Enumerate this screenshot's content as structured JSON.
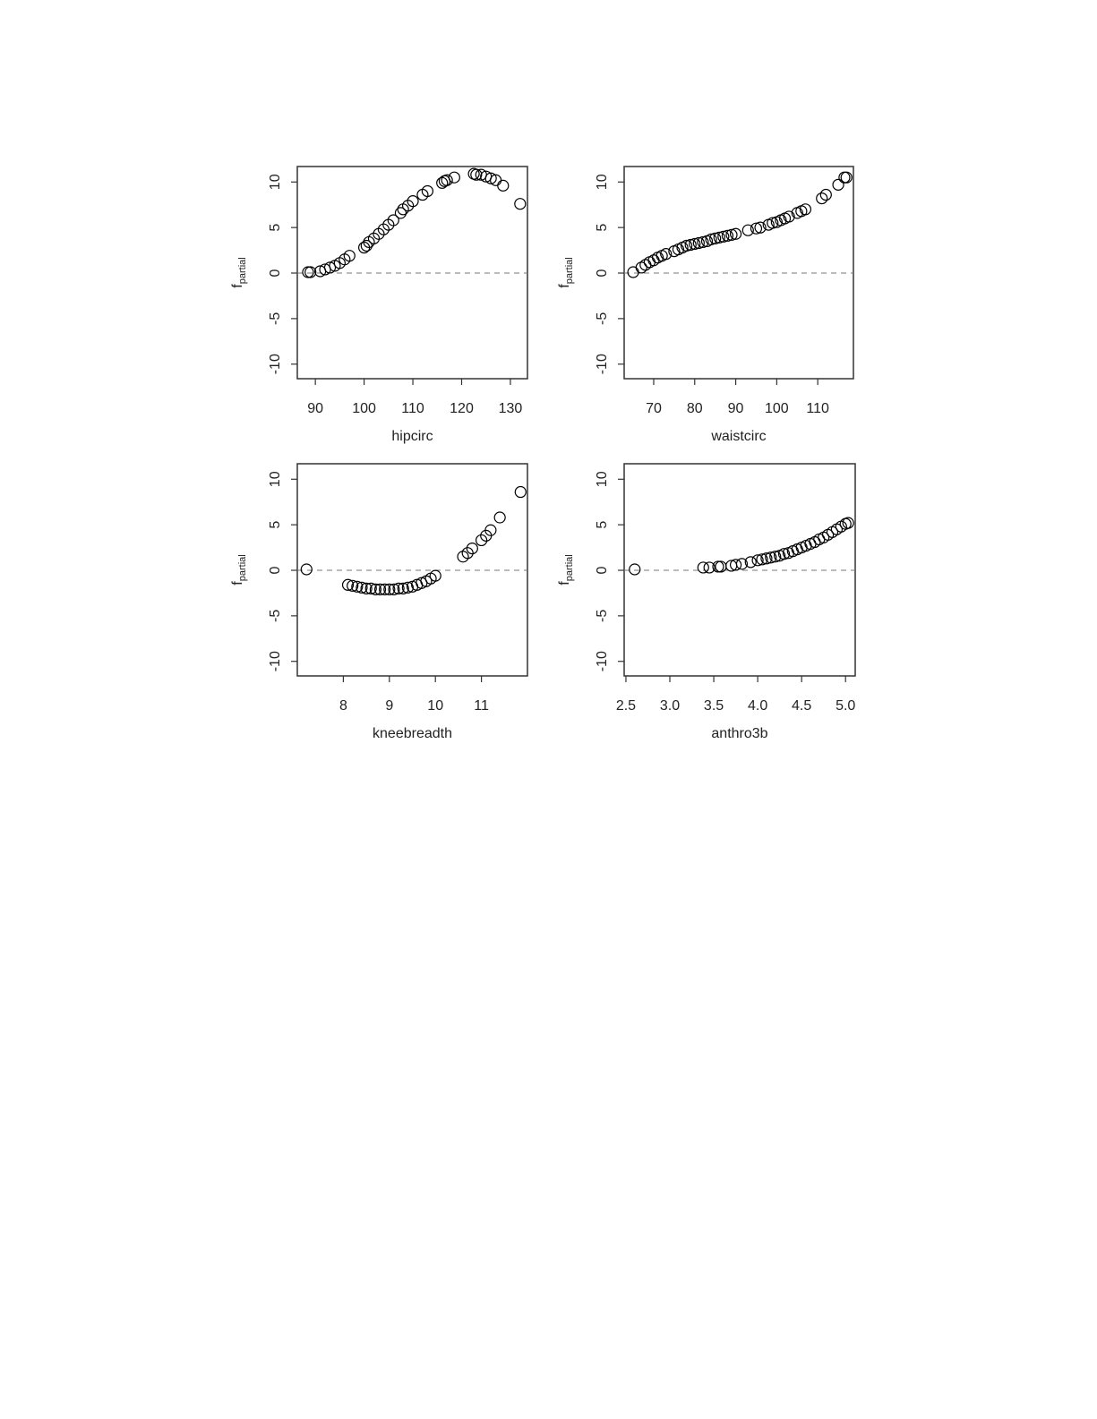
{
  "chart_data": [
    {
      "type": "scatter",
      "xlabel": "hipcirc",
      "ylabel": "f",
      "ylabel_sub": "partial",
      "color": "#000000",
      "refline": 0,
      "xlim": [
        86.3,
        133.5
      ],
      "ylim": [
        -11.6,
        11.7
      ],
      "xticks": [
        90,
        100,
        110,
        120,
        130
      ],
      "yticks": [
        -10,
        -5,
        0,
        5,
        10
      ],
      "x": [
        88.5,
        89,
        91,
        92,
        93,
        94,
        95,
        96,
        97,
        100,
        100.5,
        101,
        102,
        103,
        104,
        105,
        106,
        107.5,
        108,
        109,
        110,
        112,
        113,
        116,
        116.5,
        117,
        118.5,
        122.5,
        123,
        124,
        125,
        126,
        127,
        128.5,
        132
      ],
      "values": [
        0.1,
        0.1,
        0.2,
        0.4,
        0.6,
        0.8,
        1.1,
        1.5,
        1.9,
        2.8,
        3.0,
        3.4,
        3.8,
        4.3,
        4.8,
        5.3,
        5.8,
        6.6,
        7.0,
        7.4,
        7.9,
        8.6,
        9.0,
        9.9,
        10.1,
        10.2,
        10.5,
        10.9,
        10.8,
        10.8,
        10.6,
        10.4,
        10.2,
        9.6,
        7.6
      ]
    },
    {
      "type": "scatter",
      "xlabel": "waistcirc",
      "ylabel": "f",
      "ylabel_sub": "partial",
      "color": "#000000",
      "refline": 0,
      "xlim": [
        62.8,
        118.7
      ],
      "ylim": [
        -11.6,
        11.7
      ],
      "xticks": [
        70,
        80,
        90,
        100,
        110
      ],
      "yticks": [
        -10,
        -5,
        0,
        5,
        10
      ],
      "x": [
        65,
        67,
        68,
        69,
        70,
        71,
        72,
        73,
        75,
        76,
        77,
        78,
        79,
        80,
        81,
        82,
        83,
        84,
        85,
        86,
        87,
        88,
        89,
        90,
        93,
        95,
        96,
        98,
        99,
        100,
        101,
        102,
        103,
        105,
        106,
        107,
        111,
        112,
        115,
        116.5,
        117
      ],
      "values": [
        0.1,
        0.6,
        0.9,
        1.2,
        1.4,
        1.7,
        1.9,
        2.1,
        2.4,
        2.6,
        2.8,
        3.0,
        3.1,
        3.2,
        3.3,
        3.4,
        3.5,
        3.7,
        3.8,
        3.9,
        4.0,
        4.1,
        4.2,
        4.3,
        4.7,
        4.9,
        5.0,
        5.3,
        5.5,
        5.6,
        5.8,
        6.0,
        6.2,
        6.6,
        6.8,
        7.0,
        8.2,
        8.6,
        9.7,
        10.5,
        10.5
      ]
    },
    {
      "type": "scatter",
      "xlabel": "kneebreadth",
      "ylabel": "f",
      "ylabel_sub": "partial",
      "color": "#000000",
      "refline": 0,
      "xlim": [
        7.0,
        12.0
      ],
      "ylim": [
        -11.6,
        11.7
      ],
      "xticks": [
        8,
        9,
        10,
        11
      ],
      "yticks": [
        -10,
        -5,
        0,
        5,
        10
      ],
      "x": [
        7.2,
        8.1,
        8.2,
        8.3,
        8.4,
        8.5,
        8.6,
        8.7,
        8.8,
        8.9,
        9.0,
        9.1,
        9.2,
        9.3,
        9.4,
        9.5,
        9.6,
        9.7,
        9.8,
        9.9,
        10.0,
        10.6,
        10.7,
        10.8,
        11.0,
        11.1,
        11.2,
        11.4,
        11.85
      ],
      "values": [
        0.1,
        -1.6,
        -1.7,
        -1.8,
        -1.9,
        -2.0,
        -2.0,
        -2.1,
        -2.1,
        -2.1,
        -2.1,
        -2.1,
        -2.0,
        -2.0,
        -1.9,
        -1.8,
        -1.6,
        -1.4,
        -1.2,
        -0.9,
        -0.6,
        1.5,
        1.9,
        2.4,
        3.3,
        3.8,
        4.4,
        5.8,
        8.6
      ]
    },
    {
      "type": "scatter",
      "xlabel": "anthro3b",
      "ylabel": "f",
      "ylabel_sub": "partial",
      "color": "#000000",
      "refline": 0,
      "xlim": [
        2.48,
        5.11
      ],
      "ylim": [
        -11.6,
        11.7
      ],
      "xticks": [
        2.5,
        {
          "value": 3,
          "label": "3.0"
        },
        3.5,
        {
          "value": 4,
          "label": "4.0"
        },
        4.5,
        {
          "value": 5,
          "label": "5.0"
        }
      ],
      "yticks": [
        -10,
        -5,
        0,
        5,
        10
      ],
      "x": [
        2.6,
        3.38,
        3.45,
        3.55,
        3.58,
        3.7,
        3.75,
        3.82,
        3.92,
        4.0,
        4.05,
        4.1,
        4.15,
        4.2,
        4.25,
        4.3,
        4.35,
        4.4,
        4.45,
        4.5,
        4.55,
        4.6,
        4.65,
        4.7,
        4.75,
        4.8,
        4.85,
        4.9,
        4.95,
        5.0,
        5.03
      ],
      "values": [
        0.1,
        0.3,
        0.3,
        0.4,
        0.4,
        0.5,
        0.6,
        0.7,
        0.9,
        1.1,
        1.2,
        1.3,
        1.4,
        1.5,
        1.6,
        1.8,
        1.9,
        2.1,
        2.3,
        2.5,
        2.7,
        2.9,
        3.1,
        3.4,
        3.6,
        3.9,
        4.2,
        4.5,
        4.8,
        5.1,
        5.2
      ]
    }
  ]
}
